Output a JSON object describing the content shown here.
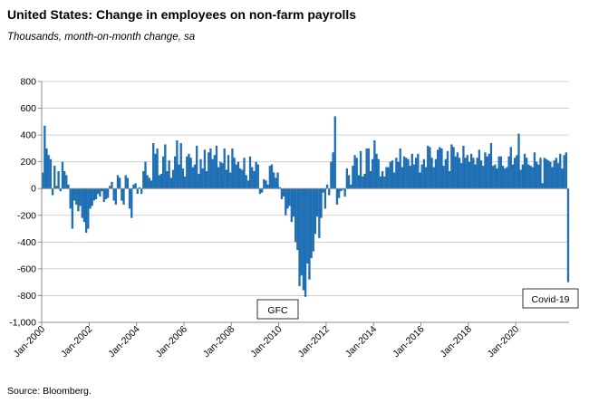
{
  "header": {
    "title": "United States: Change in employees on non-farm payrolls",
    "subtitle": "Thousands, month-on-month change, sa"
  },
  "footer": {
    "source": "Source: Bloomberg."
  },
  "colors": {
    "bar": "#1f6fb4",
    "grid": "#c6c6c6",
    "axis": "#8c8c8c"
  },
  "chart_data": {
    "type": "bar",
    "title": "United States: Change in employees on non-farm payrolls",
    "subtitle": "Thousands, month-on-month change, sa",
    "xlabel": "",
    "ylabel": "",
    "ylim": [
      -1000,
      800
    ],
    "yticks": [
      "800",
      "600",
      "400",
      "200",
      "0",
      "-200",
      "-400",
      "-600",
      "-800",
      "-1,000"
    ],
    "xticks": [
      "Jan-2000",
      "Jan-2002",
      "Jan-2004",
      "Jan-2006",
      "Jan-2008",
      "Jan-2010",
      "Jan-2012",
      "Jan-2014",
      "Jan-2016",
      "Jan-2018",
      "Jan-2020"
    ],
    "grid": true,
    "x_start": "Jan-2000",
    "x_end": "Mar-2020",
    "series": [
      {
        "frequency": "monthly",
        "values": [
          120,
          470,
          300,
          250,
          220,
          -50,
          170,
          20,
          130,
          -20,
          200,
          130,
          100,
          30,
          -150,
          -300,
          -90,
          -120,
          -170,
          -130,
          -220,
          -250,
          -330,
          -300,
          -150,
          -130,
          -90,
          -80,
          -40,
          -60,
          -20,
          -100,
          -80,
          -70,
          20,
          50,
          -90,
          -120,
          100,
          80,
          -90,
          -120,
          100,
          80,
          -150,
          -220,
          30,
          40,
          -40,
          10,
          -40,
          130,
          200,
          100,
          80,
          60,
          340,
          260,
          300,
          100,
          110,
          240,
          330,
          130,
          210,
          80,
          140,
          240,
          360,
          180,
          340,
          150,
          90,
          240,
          260,
          230,
          160,
          180,
          320,
          110,
          220,
          150,
          290,
          130,
          270,
          300,
          220,
          250,
          320,
          160,
          200,
          190,
          300,
          140,
          250,
          120,
          300,
          230,
          180,
          200,
          150,
          140,
          230,
          100,
          60,
          240,
          160,
          130,
          200,
          180,
          -40,
          -30,
          70,
          60,
          30,
          170,
          180,
          120,
          80,
          120,
          10,
          -80,
          -60,
          -200,
          -150,
          -130,
          -250,
          -210,
          -400,
          -460,
          -730,
          -650,
          -760,
          -810,
          -560,
          -680,
          -520,
          -470,
          -340,
          -210,
          -370,
          -220,
          -30,
          -150,
          30,
          -50,
          200,
          270,
          540,
          -120,
          -70,
          -20,
          -10,
          -60,
          150,
          100,
          30,
          170,
          250,
          230,
          100,
          280,
          90,
          110,
          300,
          300,
          130,
          220,
          360,
          260,
          220,
          90,
          130,
          90,
          160,
          160,
          200,
          210,
          120,
          230,
          200,
          300,
          160,
          240,
          230,
          220,
          170,
          260,
          180,
          230,
          260,
          120,
          180,
          220,
          160,
          320,
          310,
          230,
          160,
          220,
          290,
          310,
          300,
          170,
          220,
          280,
          130,
          330,
          310,
          240,
          270,
          230,
          190,
          320,
          230,
          250,
          200,
          260,
          230,
          180,
          230,
          290,
          210,
          170,
          270,
          240,
          260,
          340,
          170,
          180,
          150,
          240,
          240,
          170,
          150,
          160,
          240,
          310,
          180,
          230,
          250,
          410,
          140,
          180,
          260,
          230,
          180,
          170,
          160,
          270,
          200,
          180,
          230,
          40,
          230,
          220,
          210,
          200,
          160,
          210,
          230,
          190,
          260,
          150,
          250,
          270,
          -700
        ]
      }
    ],
    "annotations": [
      "GFC",
      "Covid-19"
    ]
  }
}
